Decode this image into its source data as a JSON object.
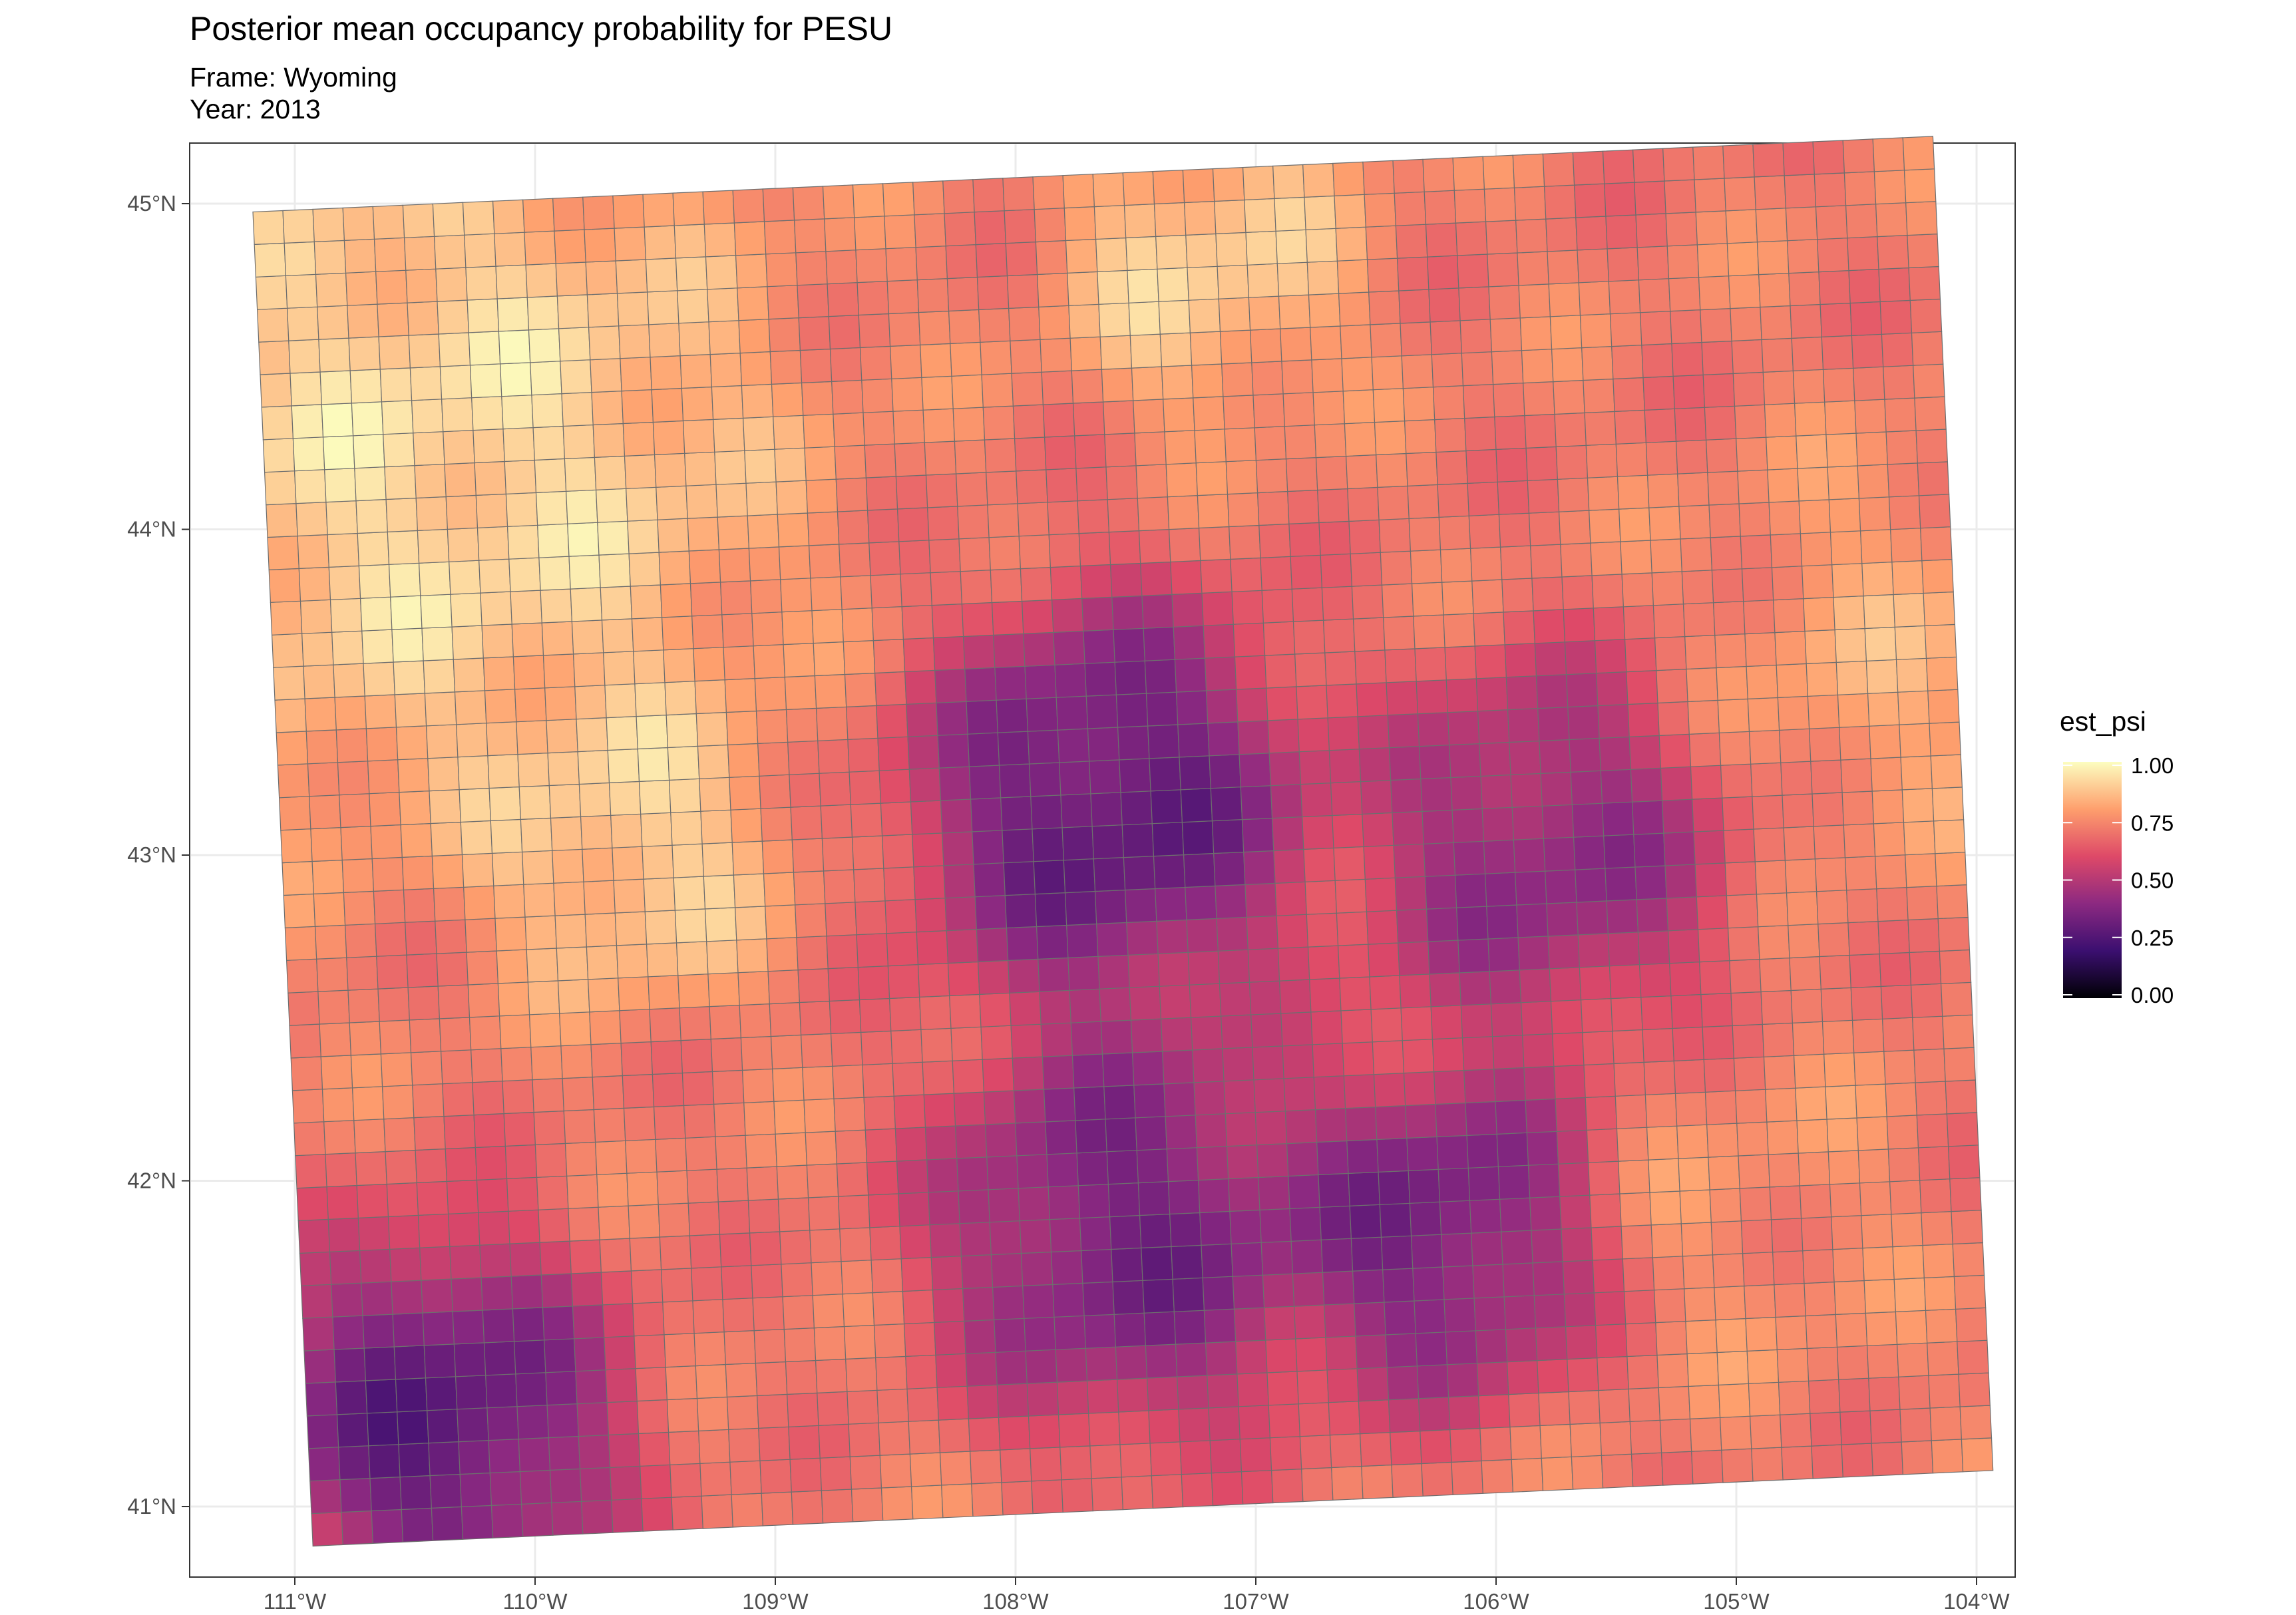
{
  "title": "Posterior mean occupancy probability for PESU",
  "subtitle": {
    "frame": "Frame: Wyoming",
    "year": "Year: 2013"
  },
  "axes": {
    "x_ticks": [
      "111°W",
      "110°W",
      "109°W",
      "108°W",
      "107°W",
      "106°W",
      "105°W",
      "104°W"
    ],
    "y_ticks": [
      "41°N",
      "42°N",
      "43°N",
      "44°N",
      "45°N"
    ],
    "grid": true
  },
  "legend": {
    "title": "est_psi",
    "labels": [
      "1.00",
      "0.75",
      "0.50",
      "0.25",
      "0.00"
    ],
    "colormap": "magma"
  },
  "chart_data": {
    "type": "heatmap",
    "title": "Posterior mean occupancy probability for PESU",
    "x_range_lon": [
      -111.05,
      -104.05
    ],
    "y_range_lat": [
      40.99,
      45.0
    ],
    "value_range": [
      0,
      1
    ],
    "colorscale": [
      "#000004",
      "#3b0f70",
      "#8c2981",
      "#de4968",
      "#fe9f6d",
      "#fcfdbf"
    ],
    "surface": {
      "baseline": 0.72,
      "hotspots": [
        {
          "lon": -110.5,
          "lat": 41.35,
          "value": 0.15,
          "radius": 0.55
        },
        {
          "lon": -107.6,
          "lat": 43.15,
          "value": 0.15,
          "radius": 0.6
        },
        {
          "lon": -107.6,
          "lat": 41.85,
          "value": 0.22,
          "radius": 0.6
        },
        {
          "lon": -106.3,
          "lat": 41.8,
          "value": 0.22,
          "radius": 0.5
        },
        {
          "lon": -105.8,
          "lat": 42.95,
          "value": 0.3,
          "radius": 0.55
        },
        {
          "lon": -110.3,
          "lat": 44.3,
          "value": 1.0,
          "radius": 1.0
        },
        {
          "lon": -107.1,
          "lat": 44.8,
          "value": 0.95,
          "radius": 0.45
        },
        {
          "lon": -109.6,
          "lat": 43.1,
          "value": 0.97,
          "radius": 0.45
        },
        {
          "lon": -104.3,
          "lat": 43.5,
          "value": 0.85,
          "radius": 0.55
        },
        {
          "lon": -105.0,
          "lat": 41.8,
          "value": 0.78,
          "radius": 0.5
        }
      ]
    }
  }
}
